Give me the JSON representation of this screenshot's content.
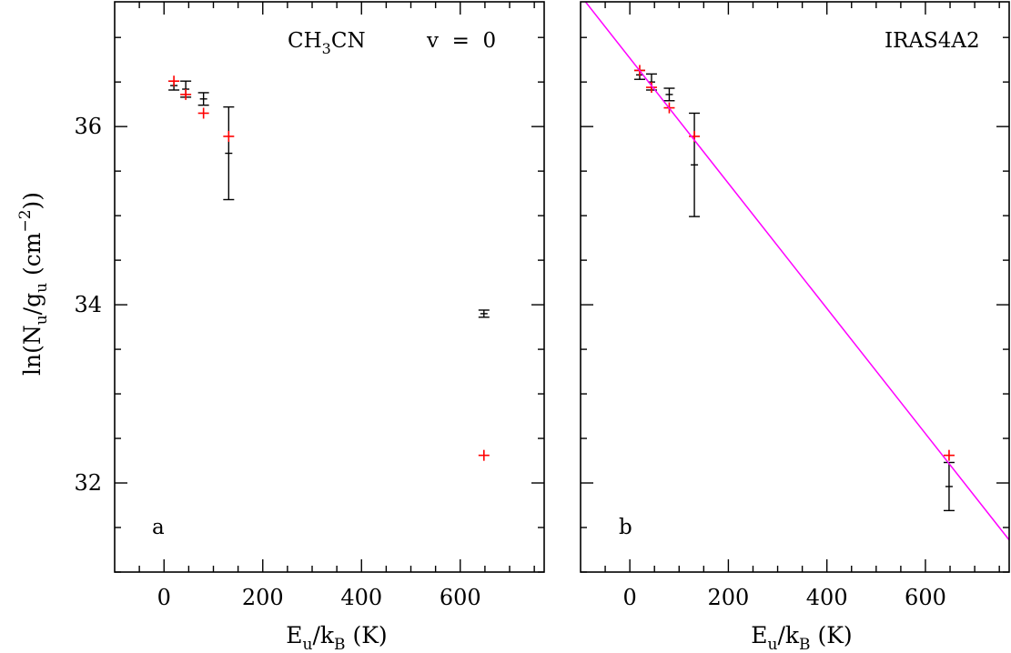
{
  "colors": {
    "observed": "#000000",
    "model": "#ff0000",
    "fit": "#ff00ff"
  },
  "chart_data": [
    {
      "type": "scatter",
      "panel_label": "a",
      "annotation_molecule": {
        "main": "CH",
        "sub": "3",
        "tail": "CN"
      },
      "annotation_state": "v  =  0",
      "xlabel": {
        "main": "E",
        "sub1": "u",
        "mid": "/k",
        "sub2": "B",
        "tail": " (K)"
      },
      "ylabel": {
        "p1": "ln(N",
        "s1": "u",
        "p2": "/g",
        "s2": "u",
        "p3": " (cm",
        "sup": "−2",
        "p4": "))"
      },
      "xlim": [
        -100,
        770
      ],
      "ylim": [
        31.0,
        37.4
      ],
      "xticks": [
        0,
        200,
        400,
        600
      ],
      "yticks": [
        32,
        34,
        36
      ],
      "series": [
        {
          "role": "observed",
          "points": [
            {
              "x": 20,
              "y": 36.46,
              "err": 0.05
            },
            {
              "x": 44,
              "y": 36.42,
              "err": 0.09
            },
            {
              "x": 80,
              "y": 36.31,
              "err": 0.07
            },
            {
              "x": 131,
              "y": 35.7,
              "err": 0.52
            },
            {
              "x": 648,
              "y": 33.9,
              "err": 0.04
            }
          ]
        },
        {
          "role": "model",
          "points": [
            {
              "x": 20,
              "y": 36.51
            },
            {
              "x": 44,
              "y": 36.36
            },
            {
              "x": 80,
              "y": 36.15
            },
            {
              "x": 131,
              "y": 35.89
            },
            {
              "x": 648,
              "y": 32.31
            }
          ]
        }
      ]
    },
    {
      "type": "scatter",
      "panel_label": "b",
      "annotation_source": "IRAS4A2",
      "xlabel": {
        "main": "E",
        "sub1": "u",
        "mid": "/k",
        "sub2": "B",
        "tail": " (K)"
      },
      "xlim": [
        -100,
        770
      ],
      "ylim": [
        31.0,
        37.4
      ],
      "xticks": [
        0,
        200,
        400,
        600
      ],
      "yticks": [
        32,
        34,
        36
      ],
      "series": [
        {
          "role": "observed",
          "points": [
            {
              "x": 20,
              "y": 36.58,
              "err": 0.05
            },
            {
              "x": 44,
              "y": 36.5,
              "err": 0.09
            },
            {
              "x": 80,
              "y": 36.36,
              "err": 0.07
            },
            {
              "x": 131,
              "y": 35.57,
              "err": 0.58
            },
            {
              "x": 648,
              "y": 31.96,
              "err": 0.27
            }
          ]
        },
        {
          "role": "model",
          "points": [
            {
              "x": 20,
              "y": 36.63
            },
            {
              "x": 44,
              "y": 36.44
            },
            {
              "x": 80,
              "y": 36.21
            },
            {
              "x": 131,
              "y": 35.89
            },
            {
              "x": 648,
              "y": 32.31
            }
          ]
        },
        {
          "role": "fit",
          "line": [
            {
              "x": -100,
              "y": 37.47
            },
            {
              "x": 770,
              "y": 31.36
            }
          ]
        }
      ]
    }
  ]
}
